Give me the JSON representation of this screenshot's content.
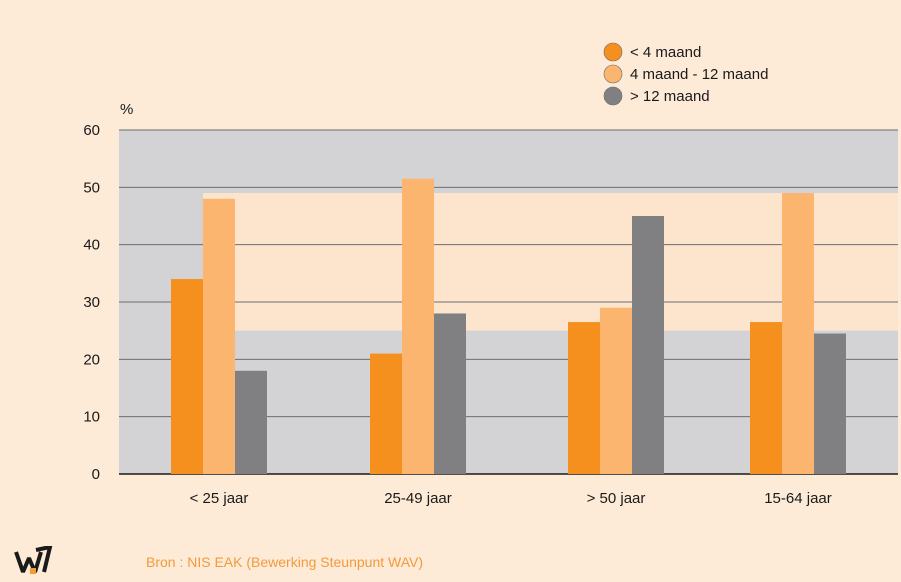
{
  "chart_data": {
    "type": "bar",
    "ylabel": "%",
    "ylim": [
      0,
      60
    ],
    "yticks": [
      0,
      10,
      20,
      30,
      40,
      50,
      60
    ],
    "grid": true,
    "legend_position": "top-right",
    "categories": [
      "< 25 jaar",
      "25-49 jaar",
      "> 50 jaar",
      "15-64 jaar"
    ],
    "series": [
      {
        "name": "< 4 maand",
        "color": "#f5901f",
        "values": [
          34,
          21,
          26.5,
          26.5
        ]
      },
      {
        "name": "4 maand - 12 maand",
        "color": "#fbb56f",
        "values": [
          48,
          51.5,
          29,
          49
        ]
      },
      {
        "name": "> 12 maand",
        "color": "#808083",
        "values": [
          18,
          28,
          45,
          24.5
        ]
      }
    ]
  },
  "source": "Bron : NIS EAK (Bewerking Steunpunt WAV)",
  "logo_icon": "wav-logo-icon",
  "colors": {
    "page_background": "#fdebd8",
    "plot_background": "#d3d3d5",
    "highlight_band": "#fce5cc",
    "accent": "#f39a3b"
  }
}
